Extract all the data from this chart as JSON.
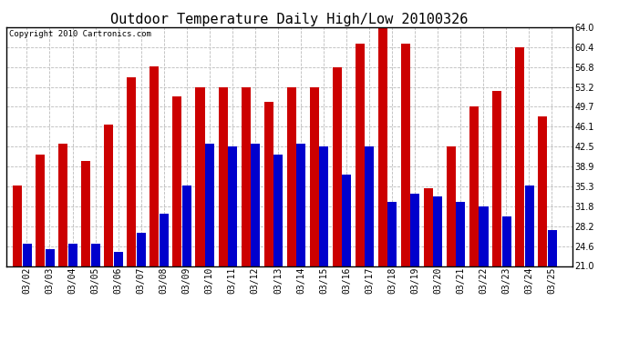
{
  "title": "Outdoor Temperature Daily High/Low 20100326",
  "copyright": "Copyright 2010 Cartronics.com",
  "dates": [
    "03/02",
    "03/03",
    "03/04",
    "03/05",
    "03/06",
    "03/07",
    "03/08",
    "03/09",
    "03/10",
    "03/11",
    "03/12",
    "03/13",
    "03/14",
    "03/15",
    "03/16",
    "03/17",
    "03/18",
    "03/19",
    "03/20",
    "03/21",
    "03/22",
    "03/23",
    "03/24",
    "03/25"
  ],
  "highs": [
    35.5,
    41.0,
    43.0,
    40.0,
    46.5,
    55.0,
    57.0,
    51.5,
    53.2,
    53.2,
    53.2,
    50.5,
    53.2,
    53.2,
    56.8,
    61.0,
    64.0,
    61.0,
    35.0,
    42.5,
    49.7,
    52.5,
    60.4,
    48.0
  ],
  "lows": [
    25.0,
    24.0,
    25.0,
    25.0,
    23.5,
    27.0,
    30.5,
    35.5,
    43.0,
    42.5,
    43.0,
    41.0,
    43.0,
    42.5,
    37.5,
    42.5,
    32.5,
    34.0,
    33.5,
    32.5,
    31.8,
    30.0,
    35.5,
    27.5
  ],
  "high_color": "#cc0000",
  "low_color": "#0000cc",
  "bg_color": "#ffffff",
  "grid_color": "#bbbbbb",
  "ylim_min": 21.0,
  "ylim_max": 64.0,
  "yticks": [
    21.0,
    24.6,
    28.2,
    31.8,
    35.3,
    38.9,
    42.5,
    46.1,
    49.7,
    53.2,
    56.8,
    60.4,
    64.0
  ],
  "title_fontsize": 11,
  "copyright_fontsize": 6.5,
  "tick_fontsize": 7,
  "bar_width": 0.4,
  "bar_gap": 0.02
}
